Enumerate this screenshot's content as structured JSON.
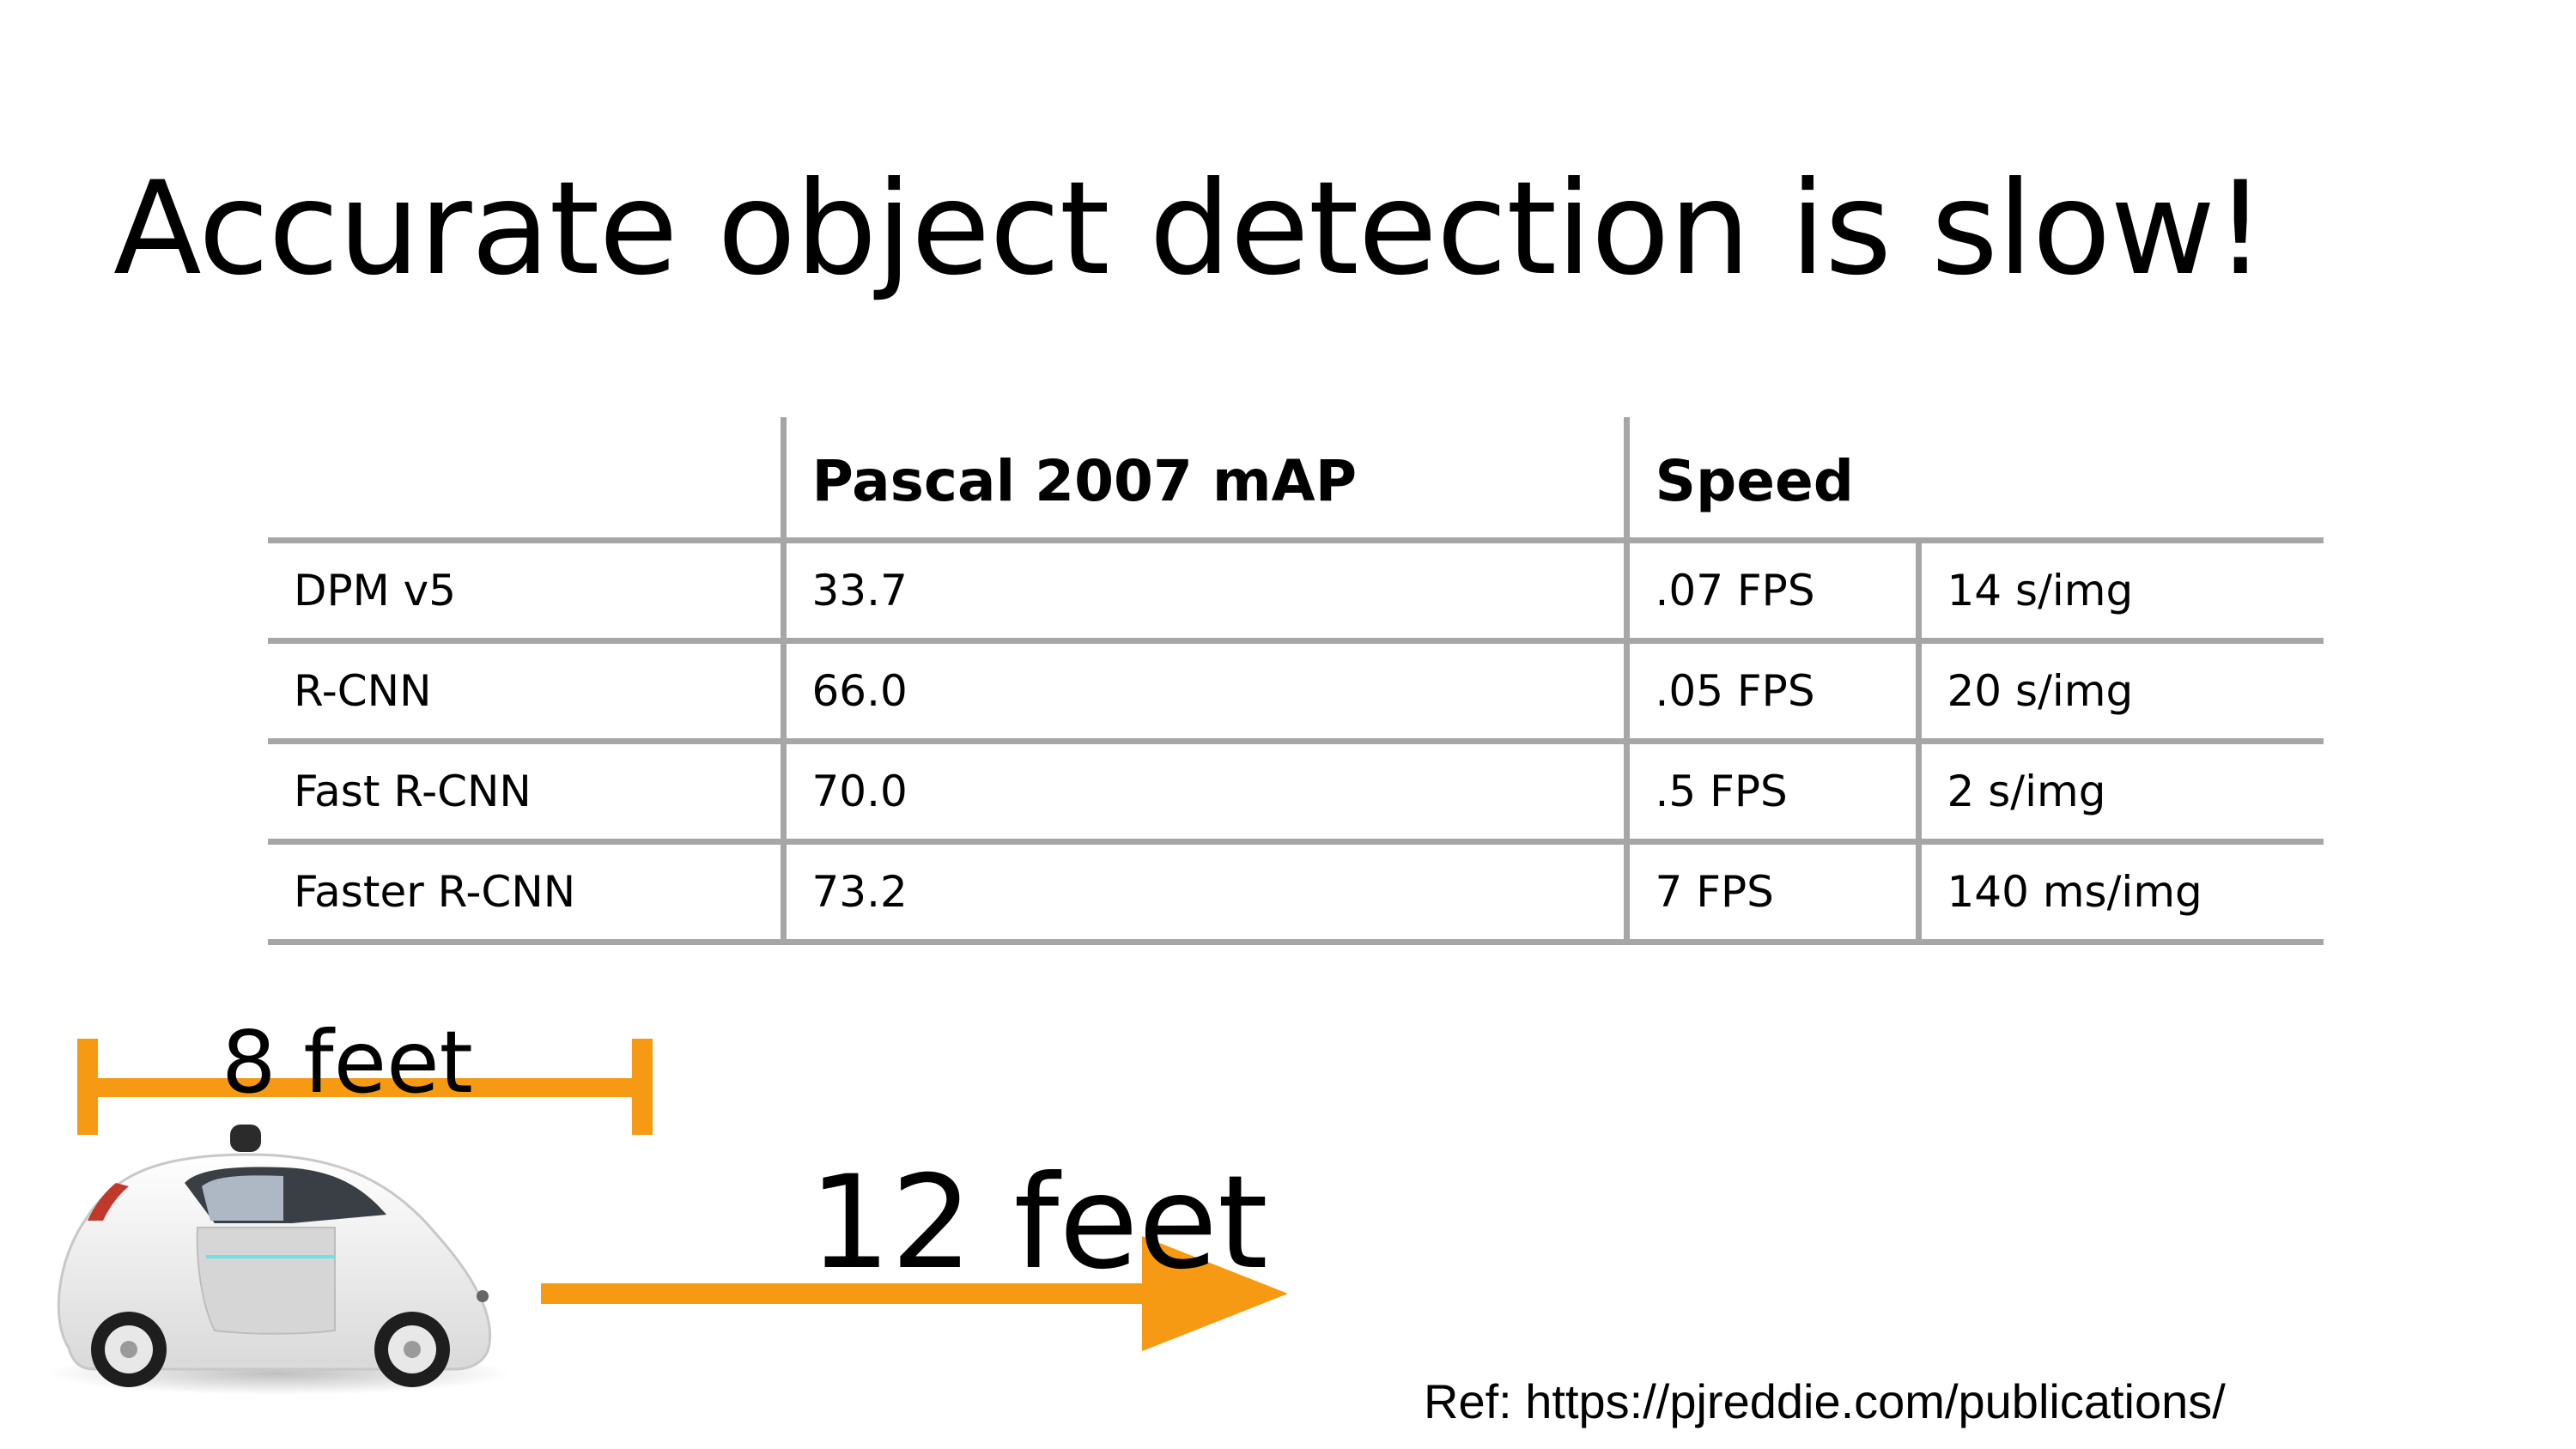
{
  "slide": {
    "title": "Accurate object detection is slow!",
    "ref": "Ref: https://pjreddie.com/publications/"
  },
  "table": {
    "headers": [
      "",
      "Pascal 2007 mAP",
      "Speed"
    ],
    "rows": [
      {
        "model": "DPM v5",
        "map": "33.7",
        "fps": ".07 FPS",
        "time": "14 s/img"
      },
      {
        "model": "R-CNN",
        "map": "66.0",
        "fps": ".05 FPS",
        "time": "20 s/img"
      },
      {
        "model": "Fast R-CNN",
        "map": "70.0",
        "fps": ".5 FPS",
        "time": "2 s/img"
      },
      {
        "model": "Faster R-CNN",
        "map": "73.2",
        "fps": "7 FPS",
        "time": "140 ms/img"
      }
    ]
  },
  "illustration": {
    "car_width_label": "8 feet",
    "distance_label": "12 feet",
    "accent_color": "#f59a12",
    "car_icon": "self-driving-car-icon"
  }
}
